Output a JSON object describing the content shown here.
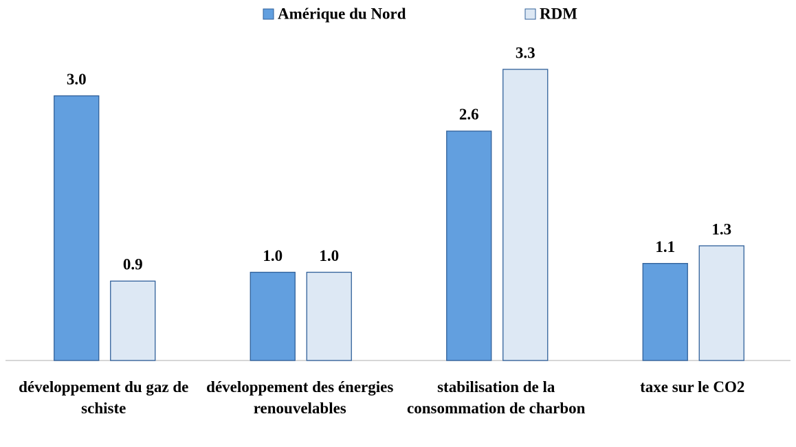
{
  "chart_data": {
    "type": "bar",
    "categories": [
      "développement du gaz de schiste",
      "développement des énergies renouvelables",
      "stabilisation de la consommation de charbon",
      "taxe sur le CO2"
    ],
    "series": [
      {
        "name": "Amérique du Nord",
        "color": "#629fdf",
        "values": [
          3.0,
          1.0,
          2.6,
          1.1
        ],
        "value_labels": [
          "3.0",
          "1.0",
          "2.6",
          "1.1"
        ]
      },
      {
        "name": "RDM",
        "color": "#dde8f4",
        "values": [
          0.9,
          1.0,
          3.3,
          1.3
        ],
        "value_labels": [
          "0.9",
          "1.0",
          "3.3",
          "1.3"
        ]
      }
    ],
    "legend": "top"
  }
}
